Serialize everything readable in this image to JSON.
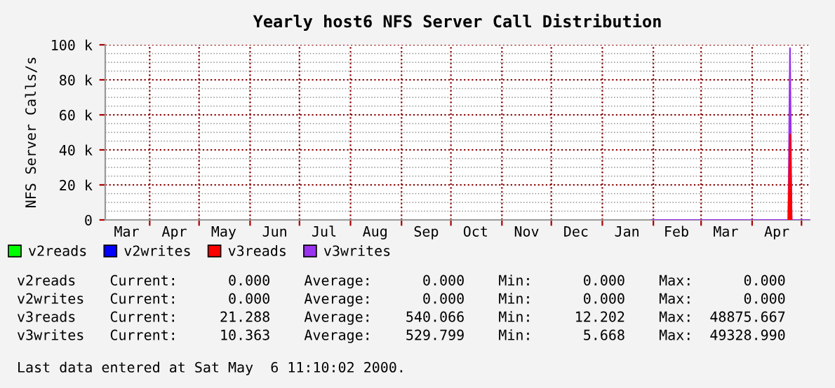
{
  "chart_data": {
    "type": "area",
    "stacked": true,
    "title": "Yearly host6 NFS Server Call Distribution",
    "ylabel": "NFS Server Calls/s",
    "x": [
      "2000-01-31",
      "2000-04-23",
      "2000-04-24",
      "2000-04-25",
      "2000-05-06"
    ],
    "series": [
      {
        "name": "v2reads",
        "color": "#00ff00",
        "values": [
          null,
          null,
          null,
          null,
          null
        ]
      },
      {
        "name": "v2writes",
        "color": "#0000ff",
        "values": [
          null,
          null,
          null,
          null,
          null
        ]
      },
      {
        "name": "v3reads",
        "color": "#ff0000",
        "values": [
          null,
          0,
          48900,
          0,
          null
        ]
      },
      {
        "name": "v3writes",
        "color": "#9933ee",
        "values": [
          0,
          0,
          49300,
          0,
          0
        ]
      }
    ],
    "xlim": [
      "1999-03-05",
      "2000-05-06"
    ],
    "xticks": [
      {
        "value": "1999-03-18",
        "label": "Mar"
      },
      {
        "value": "1999-04-01",
        "label": null
      },
      {
        "value": "1999-04-16",
        "label": "Apr"
      },
      {
        "value": "1999-05-01",
        "label": null
      },
      {
        "value": "1999-05-16",
        "label": "May"
      },
      {
        "value": "1999-06-01",
        "label": null
      },
      {
        "value": "1999-06-16",
        "label": "Jun"
      },
      {
        "value": "1999-07-01",
        "label": null
      },
      {
        "value": "1999-07-16",
        "label": "Jul"
      },
      {
        "value": "1999-08-01",
        "label": null
      },
      {
        "value": "1999-08-16",
        "label": "Aug"
      },
      {
        "value": "1999-09-01",
        "label": null
      },
      {
        "value": "1999-09-16",
        "label": "Sep"
      },
      {
        "value": "1999-10-01",
        "label": null
      },
      {
        "value": "1999-10-16",
        "label": "Oct"
      },
      {
        "value": "1999-11-01",
        "label": null
      },
      {
        "value": "1999-11-16",
        "label": "Nov"
      },
      {
        "value": "1999-12-01",
        "label": null
      },
      {
        "value": "1999-12-16",
        "label": "Dec"
      },
      {
        "value": "2000-01-01",
        "label": null
      },
      {
        "value": "2000-01-16",
        "label": "Jan"
      },
      {
        "value": "2000-02-01",
        "label": null
      },
      {
        "value": "2000-02-15",
        "label": "Feb"
      },
      {
        "value": "2000-03-01",
        "label": null
      },
      {
        "value": "2000-03-16",
        "label": "Mar"
      },
      {
        "value": "2000-04-01",
        "label": null
      },
      {
        "value": "2000-04-16",
        "label": "Apr"
      },
      {
        "value": "2000-05-01",
        "label": null
      }
    ],
    "ylim": [
      0,
      100000
    ],
    "yticks": [
      {
        "value": 0,
        "label": "0"
      },
      {
        "value": 5000,
        "label": null
      },
      {
        "value": 10000,
        "label": null
      },
      {
        "value": 15000,
        "label": null
      },
      {
        "value": 20000,
        "label": "20 k"
      },
      {
        "value": 25000,
        "label": null
      },
      {
        "value": 30000,
        "label": null
      },
      {
        "value": 35000,
        "label": null
      },
      {
        "value": 40000,
        "label": "40 k"
      },
      {
        "value": 45000,
        "label": null
      },
      {
        "value": 50000,
        "label": null
      },
      {
        "value": 55000,
        "label": null
      },
      {
        "value": 60000,
        "label": "60 k"
      },
      {
        "value": 65000,
        "label": null
      },
      {
        "value": 70000,
        "label": null
      },
      {
        "value": 75000,
        "label": null
      },
      {
        "value": 80000,
        "label": "80 k"
      },
      {
        "value": 85000,
        "label": null
      },
      {
        "value": 90000,
        "label": null
      },
      {
        "value": 95000,
        "label": null
      },
      {
        "value": 100000,
        "label": "100 k"
      }
    ],
    "grid": true,
    "legend": "bottom",
    "annotations": [
      "v2reads    Current:      0.000    Average:      0.000    Min:      0.000    Max:      0.000",
      "v2writes   Current:      0.000    Average:      0.000    Min:      0.000    Max:      0.000",
      "v3reads    Current:     21.288    Average:    540.066    Min:     12.202    Max:  48875.667",
      "v3writes   Current:     10.363    Average:    529.799    Min:      5.668    Max:  49328.990",
      "Last data entered at Sat May  6 11:10:02 2000."
    ]
  }
}
